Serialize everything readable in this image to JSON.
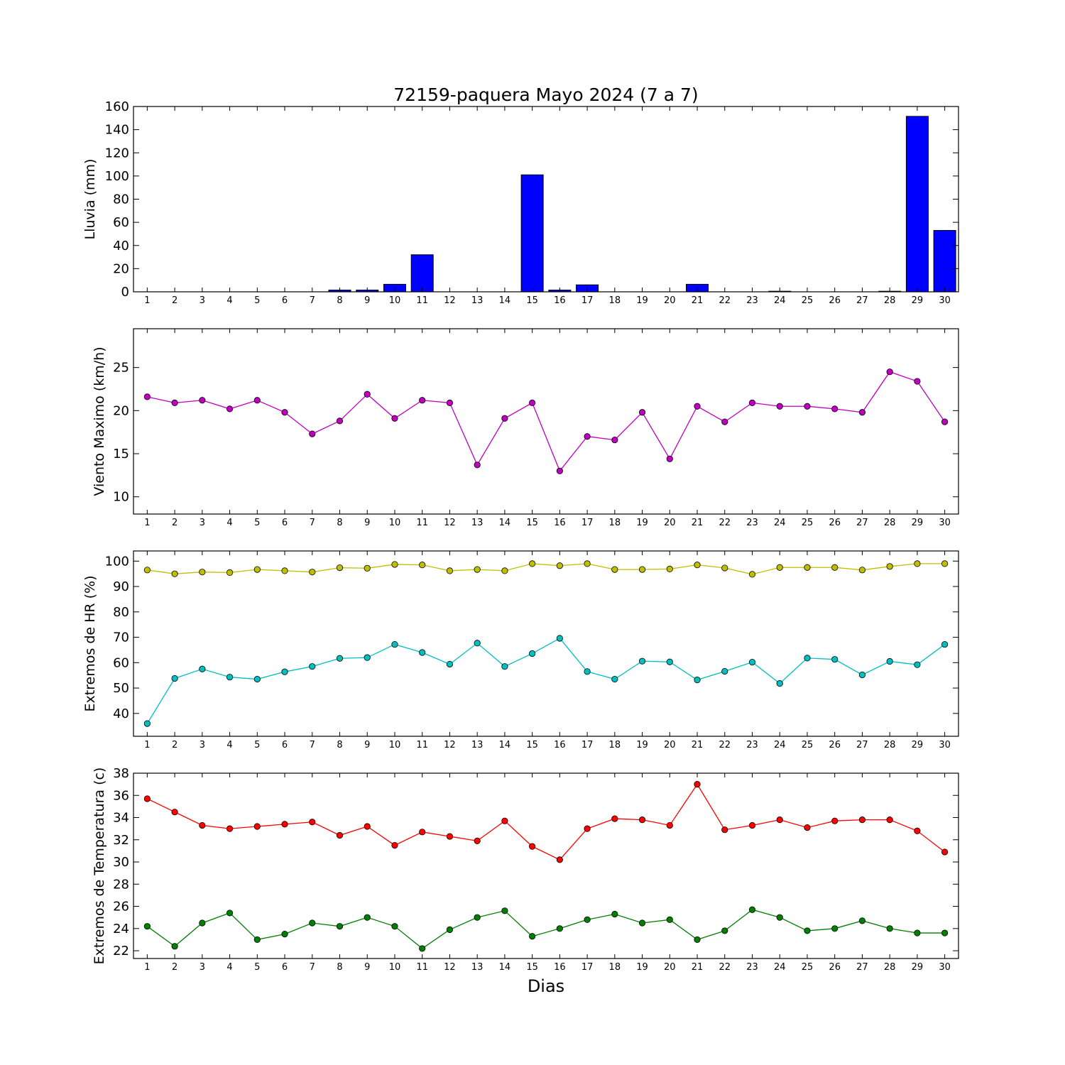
{
  "chart_data": [
    {
      "type": "bar",
      "title": "72159-paquera Mayo 2024  (7 a 7)",
      "ylabel": "Lluvia (mm)",
      "xlabel": "",
      "ylim": [
        0,
        160
      ],
      "yticks": [
        0,
        20,
        40,
        60,
        80,
        100,
        120,
        140,
        160
      ],
      "categories": [
        1,
        2,
        3,
        4,
        5,
        6,
        7,
        8,
        9,
        10,
        11,
        12,
        13,
        14,
        15,
        16,
        17,
        18,
        19,
        20,
        21,
        22,
        23,
        24,
        25,
        26,
        27,
        28,
        29,
        30
      ],
      "series": [
        {
          "color": "#0000ff",
          "values": [
            0,
            0,
            0,
            0,
            0,
            0,
            0,
            1.5,
            1.5,
            6.5,
            32,
            0,
            0,
            0,
            101,
            1.5,
            6,
            0,
            0,
            0,
            6.5,
            0,
            0,
            0.5,
            0,
            0,
            0,
            0.5,
            151.5,
            53
          ]
        }
      ]
    },
    {
      "type": "line",
      "title": "",
      "ylabel": "Viento Maximo (km/h)",
      "xlabel": "",
      "ylim": [
        8,
        29.5
      ],
      "yticks": [
        10,
        15,
        20,
        25
      ],
      "categories": [
        1,
        2,
        3,
        4,
        5,
        6,
        7,
        8,
        9,
        10,
        11,
        12,
        13,
        14,
        15,
        16,
        17,
        18,
        19,
        20,
        21,
        22,
        23,
        24,
        25,
        26,
        27,
        28,
        29,
        30
      ],
      "series": [
        {
          "color": "#bf00bf",
          "values": [
            21.6,
            20.9,
            21.2,
            20.2,
            21.2,
            19.8,
            17.3,
            18.8,
            21.9,
            19.1,
            21.2,
            20.9,
            13.7,
            19.1,
            20.9,
            13.0,
            17.0,
            16.6,
            19.8,
            14.4,
            20.5,
            18.7,
            20.9,
            20.5,
            20.5,
            20.2,
            19.8,
            24.5,
            23.4,
            18.7
          ]
        }
      ]
    },
    {
      "type": "line",
      "title": "",
      "ylabel": "Extremos de HR (%)",
      "xlabel": "",
      "ylim": [
        31,
        104
      ],
      "yticks": [
        40,
        50,
        60,
        70,
        80,
        90,
        100
      ],
      "categories": [
        1,
        2,
        3,
        4,
        5,
        6,
        7,
        8,
        9,
        10,
        11,
        12,
        13,
        14,
        15,
        16,
        17,
        18,
        19,
        20,
        21,
        22,
        23,
        24,
        25,
        26,
        27,
        28,
        29,
        30
      ],
      "series": [
        {
          "color": "#bfbf00",
          "values": [
            96.5,
            95,
            95.7,
            95.5,
            96.7,
            96.2,
            95.7,
            97.4,
            97.2,
            98.7,
            98.5,
            96.2,
            96.7,
            96.2,
            99,
            98.2,
            99,
            96.7,
            96.7,
            96.9,
            98.5,
            97.3,
            94.8,
            97.5,
            97.5,
            97.5,
            96.5,
            97.9,
            99,
            99
          ]
        },
        {
          "color": "#00bfbf",
          "values": [
            36,
            53.8,
            57.5,
            54.3,
            53.5,
            56.4,
            58.5,
            61.7,
            62,
            67.2,
            64,
            59.4,
            67.7,
            58.5,
            63.6,
            69.6,
            56.5,
            53.5,
            60.6,
            60.3,
            53.2,
            56.6,
            60.2,
            51.8,
            61.8,
            61.3,
            55.2,
            60.5,
            59.2,
            67.2
          ]
        }
      ]
    },
    {
      "type": "line",
      "title": "",
      "ylabel": "Extremos de Temperatura (c)",
      "xlabel": "Dias",
      "ylim": [
        21.3,
        38
      ],
      "yticks": [
        22,
        24,
        26,
        28,
        30,
        32,
        34,
        36,
        38
      ],
      "categories": [
        1,
        2,
        3,
        4,
        5,
        6,
        7,
        8,
        9,
        10,
        11,
        12,
        13,
        14,
        15,
        16,
        17,
        18,
        19,
        20,
        21,
        22,
        23,
        24,
        25,
        26,
        27,
        28,
        29,
        30
      ],
      "series": [
        {
          "color": "#ff0000",
          "values": [
            35.7,
            34.5,
            33.3,
            33.0,
            33.2,
            33.4,
            33.6,
            32.4,
            33.2,
            31.5,
            32.7,
            32.3,
            31.9,
            33.7,
            31.4,
            30.2,
            33.0,
            33.9,
            33.8,
            33.3,
            37.0,
            32.9,
            33.3,
            33.8,
            33.1,
            33.7,
            33.8,
            33.8,
            32.8,
            30.9
          ]
        },
        {
          "color": "#007f00",
          "values": [
            24.2,
            22.4,
            24.5,
            25.4,
            23.0,
            23.5,
            24.5,
            24.2,
            25.0,
            24.2,
            22.2,
            23.9,
            25.0,
            25.6,
            23.3,
            24.0,
            24.8,
            25.3,
            24.5,
            24.8,
            23.0,
            23.8,
            25.7,
            25.0,
            23.8,
            24.0,
            24.7,
            24.0,
            23.6,
            23.6
          ]
        }
      ]
    }
  ]
}
